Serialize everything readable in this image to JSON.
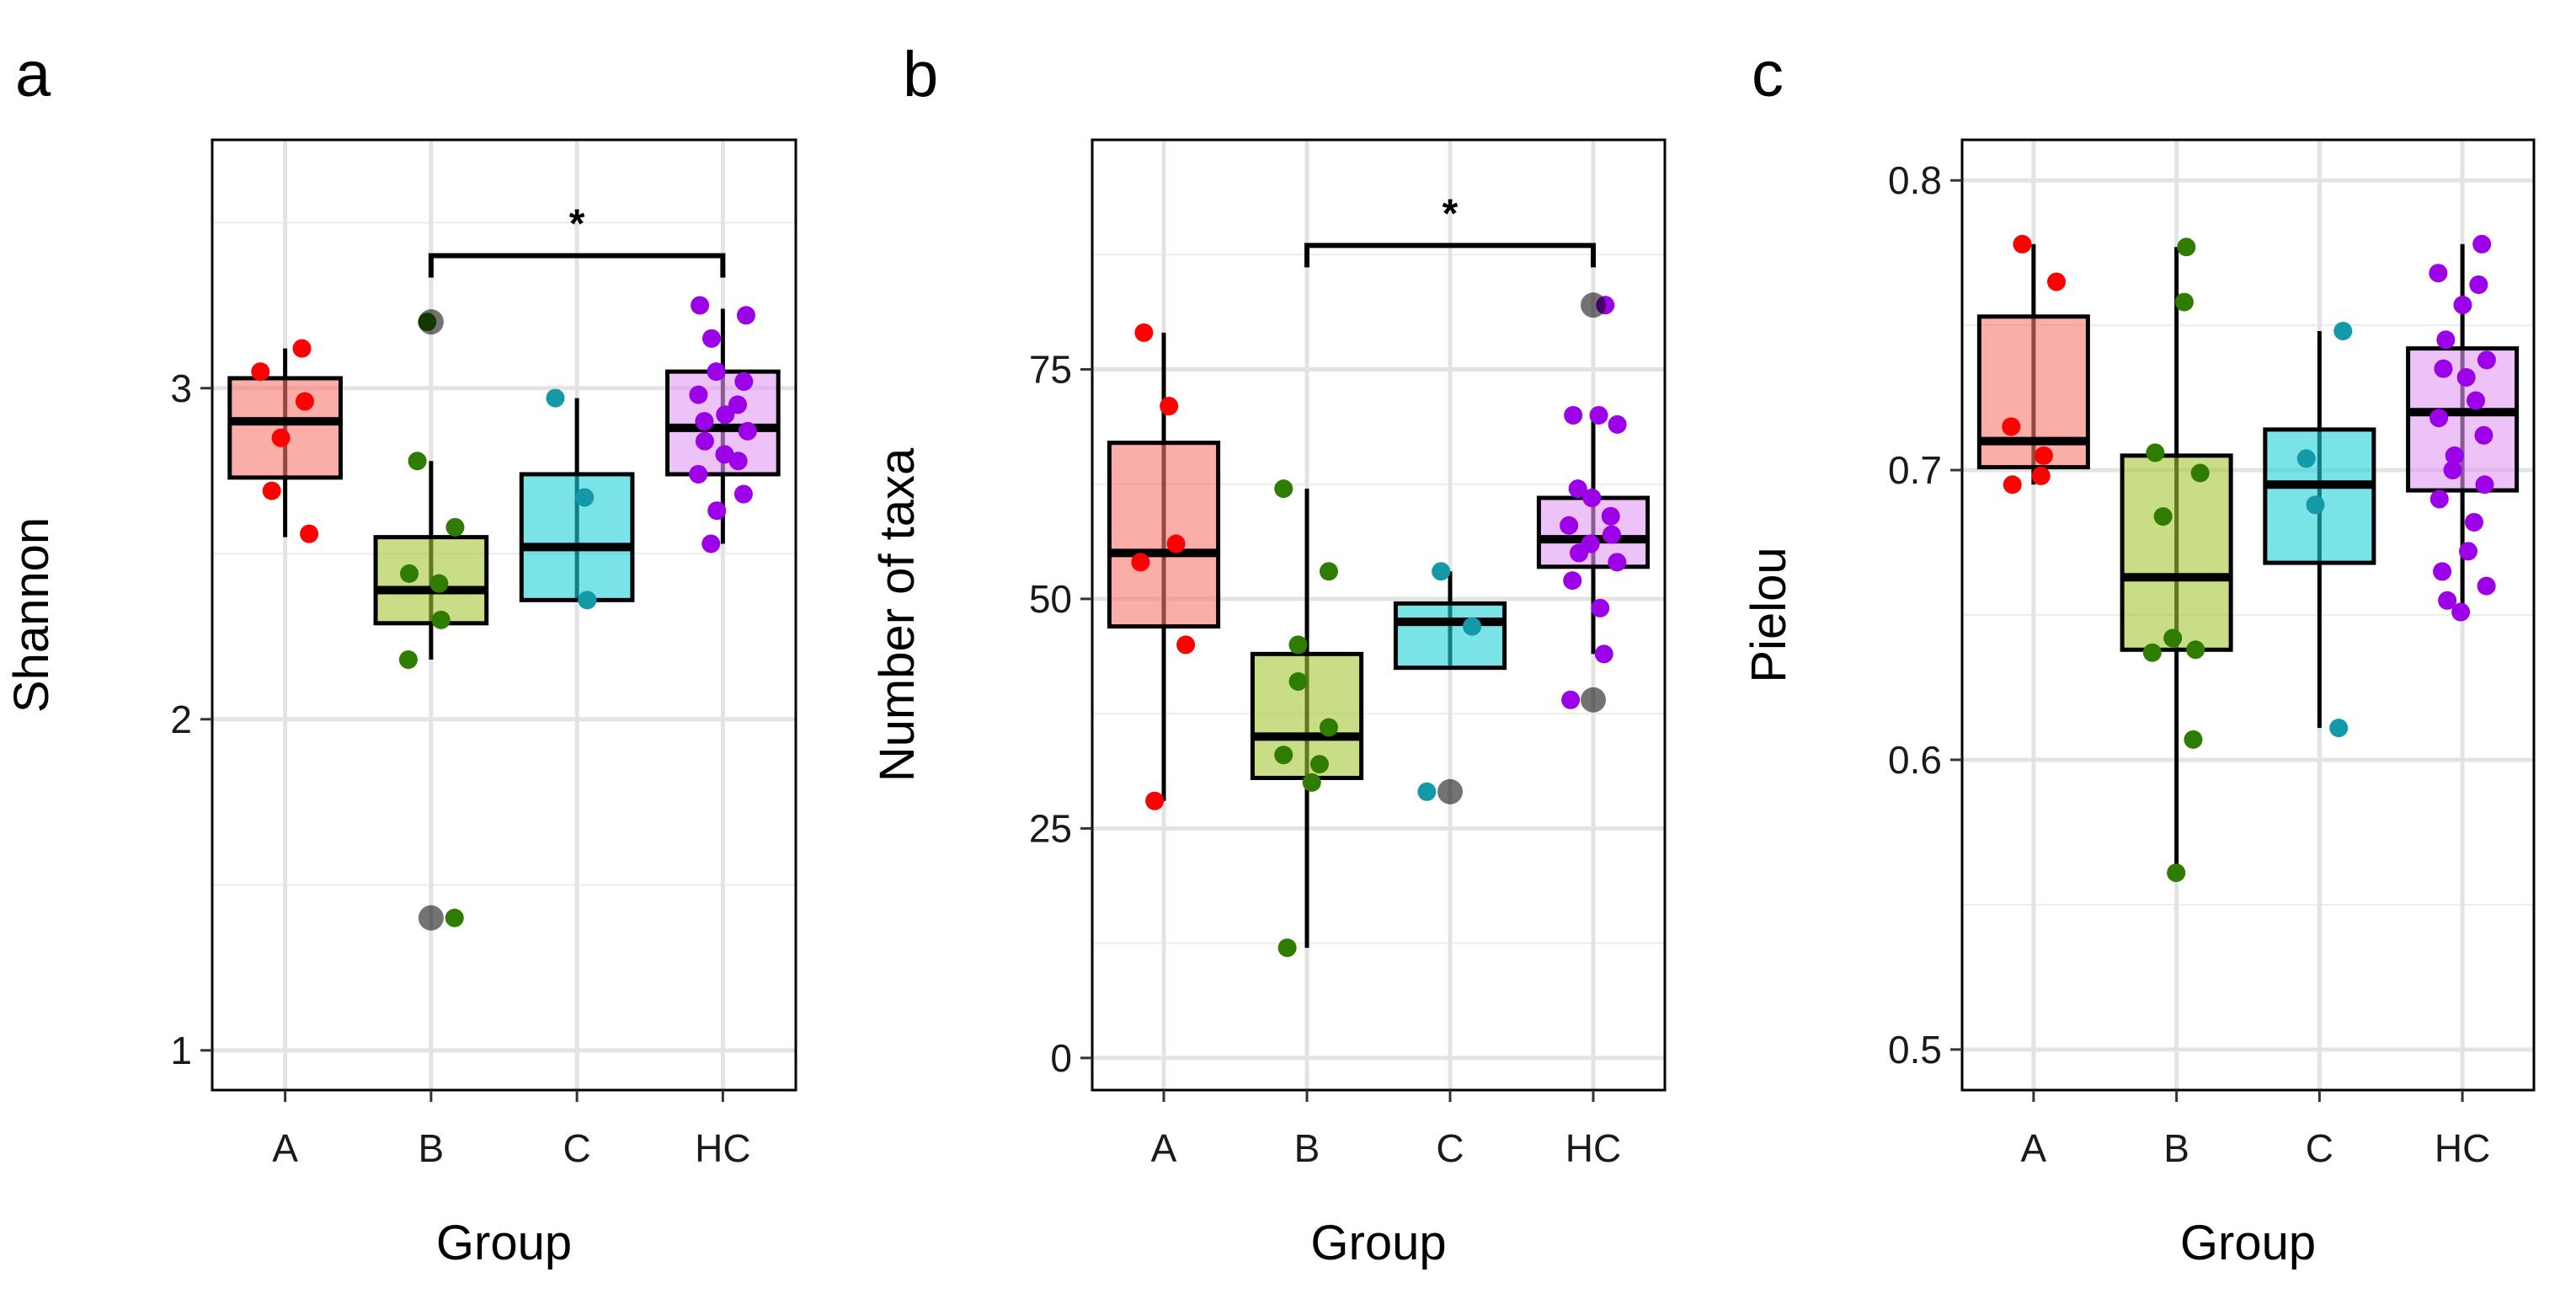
{
  "chart_data": [
    {
      "type": "box",
      "panel_label": "a",
      "xlabel": "Group",
      "ylabel": "Shannon",
      "ylim": [
        0.88,
        3.75
      ],
      "yticks": [
        1,
        2,
        3
      ],
      "ytick_labels": [
        "1",
        "2",
        "3"
      ],
      "minor_gridlines": [
        1.5,
        2.5,
        3.5
      ],
      "categories": [
        "A",
        "B",
        "C",
        "HC"
      ],
      "boxes": [
        {
          "group": "A",
          "color": "#F8766D",
          "point_color": "#FF0000",
          "whisker_low": 2.55,
          "q1": 2.73,
          "median": 2.9,
          "q3": 3.03,
          "whisker_high": 3.12,
          "outliers": []
        },
        {
          "group": "B",
          "color": "#A3C735",
          "point_color": "#2E7D00",
          "whisker_low": 2.18,
          "q1": 2.29,
          "median": 2.39,
          "q3": 2.55,
          "whisker_high": 2.78,
          "outliers": [
            3.2,
            1.4
          ]
        },
        {
          "group": "C",
          "color": "#1FD0D8",
          "point_color": "#1399A8",
          "whisker_low": 2.36,
          "q1": 2.36,
          "median": 2.52,
          "q3": 2.74,
          "whisker_high": 2.97,
          "outliers": []
        },
        {
          "group": "HC",
          "color": "#E199F5",
          "point_color": "#9B00E8",
          "whisker_low": 2.53,
          "q1": 2.74,
          "median": 2.88,
          "q3": 3.05,
          "whisker_high": 3.24,
          "outliers": []
        }
      ],
      "points": {
        "A": [
          3.12,
          3.05,
          2.96,
          2.85,
          2.69,
          2.56
        ],
        "B": [
          3.2,
          2.78,
          2.58,
          2.44,
          2.41,
          2.3,
          2.18,
          1.4
        ],
        "C": [
          2.97,
          2.67,
          2.36
        ],
        "HC": [
          3.25,
          3.22,
          3.15,
          3.05,
          3.02,
          2.98,
          2.95,
          2.92,
          2.9,
          2.87,
          2.84,
          2.8,
          2.78,
          2.74,
          2.68,
          2.63,
          2.53
        ]
      },
      "significance": {
        "from": "B",
        "to": "HC",
        "y": 3.4,
        "label": "*"
      }
    },
    {
      "type": "box",
      "panel_label": "b",
      "xlabel": "Group",
      "ylabel": "Number of taxa",
      "ylim": [
        -3.5,
        100
      ],
      "yticks": [
        0,
        25,
        50,
        75
      ],
      "ytick_labels": [
        "0",
        "25",
        "50",
        "75"
      ],
      "minor_gridlines": [
        12.5,
        37.5,
        62.5,
        87.5
      ],
      "categories": [
        "A",
        "B",
        "C",
        "HC"
      ],
      "boxes": [
        {
          "group": "A",
          "color": "#F8766D",
          "point_color": "#FF0000",
          "whisker_low": 28,
          "q1": 47,
          "median": 55,
          "q3": 67,
          "whisker_high": 79,
          "outliers": []
        },
        {
          "group": "B",
          "color": "#A3C735",
          "point_color": "#2E7D00",
          "whisker_low": 12,
          "q1": 30.5,
          "median": 35,
          "q3": 44,
          "whisker_high": 62,
          "outliers": []
        },
        {
          "group": "C",
          "color": "#1FD0D8",
          "point_color": "#1399A8",
          "whisker_low": 42.5,
          "q1": 42.5,
          "median": 47.5,
          "q3": 49.5,
          "whisker_high": 53,
          "outliers": [
            29
          ]
        },
        {
          "group": "HC",
          "color": "#E199F5",
          "point_color": "#9B00E8",
          "whisker_low": 44,
          "q1": 53.5,
          "median": 56.5,
          "q3": 61,
          "whisker_high": 70,
          "outliers": [
            82,
            39
          ]
        }
      ],
      "points": {
        "A": [
          79,
          71,
          56,
          54,
          45,
          28
        ],
        "B": [
          62,
          53,
          45,
          41,
          36,
          33,
          32,
          30,
          12
        ],
        "C": [
          53,
          47,
          29
        ],
        "HC": [
          82,
          70,
          70,
          69,
          62,
          61,
          59,
          58,
          57,
          56,
          55,
          54,
          52,
          49,
          44,
          39
        ]
      },
      "significance": {
        "from": "B",
        "to": "HC",
        "y": 88.5,
        "label": "*"
      }
    },
    {
      "type": "box",
      "panel_label": "c",
      "xlabel": "Group",
      "ylabel": "Pielou",
      "ylim": [
        0.486,
        0.814
      ],
      "yticks": [
        0.5,
        0.6,
        0.7,
        0.8
      ],
      "ytick_labels": [
        "0.5",
        "0.6",
        "0.7",
        "0.8"
      ],
      "minor_gridlines": [
        0.55,
        0.65,
        0.75
      ],
      "categories": [
        "A",
        "B",
        "C",
        "HC"
      ],
      "boxes": [
        {
          "group": "A",
          "color": "#F8766D",
          "point_color": "#FF0000",
          "whisker_low": 0.695,
          "q1": 0.701,
          "median": 0.71,
          "q3": 0.753,
          "whisker_high": 0.778,
          "outliers": []
        },
        {
          "group": "B",
          "color": "#A3C735",
          "point_color": "#2E7D00",
          "whisker_low": 0.561,
          "q1": 0.638,
          "median": 0.663,
          "q3": 0.705,
          "whisker_high": 0.777,
          "outliers": []
        },
        {
          "group": "C",
          "color": "#1FD0D8",
          "point_color": "#1399A8",
          "whisker_low": 0.611,
          "q1": 0.668,
          "median": 0.695,
          "q3": 0.714,
          "whisker_high": 0.748,
          "outliers": []
        },
        {
          "group": "HC",
          "color": "#E199F5",
          "point_color": "#9B00E8",
          "whisker_low": 0.651,
          "q1": 0.693,
          "median": 0.72,
          "q3": 0.742,
          "whisker_high": 0.778,
          "outliers": []
        }
      ],
      "points": {
        "A": [
          0.778,
          0.765,
          0.715,
          0.705,
          0.698,
          0.695
        ],
        "B": [
          0.777,
          0.758,
          0.706,
          0.699,
          0.684,
          0.642,
          0.638,
          0.637,
          0.607,
          0.561
        ],
        "C": [
          0.748,
          0.704,
          0.688,
          0.611
        ],
        "HC": [
          0.778,
          0.768,
          0.764,
          0.757,
          0.745,
          0.738,
          0.735,
          0.732,
          0.724,
          0.718,
          0.712,
          0.705,
          0.7,
          0.695,
          0.69,
          0.682,
          0.672,
          0.665,
          0.66,
          0.655,
          0.651
        ]
      },
      "significance": null
    }
  ]
}
